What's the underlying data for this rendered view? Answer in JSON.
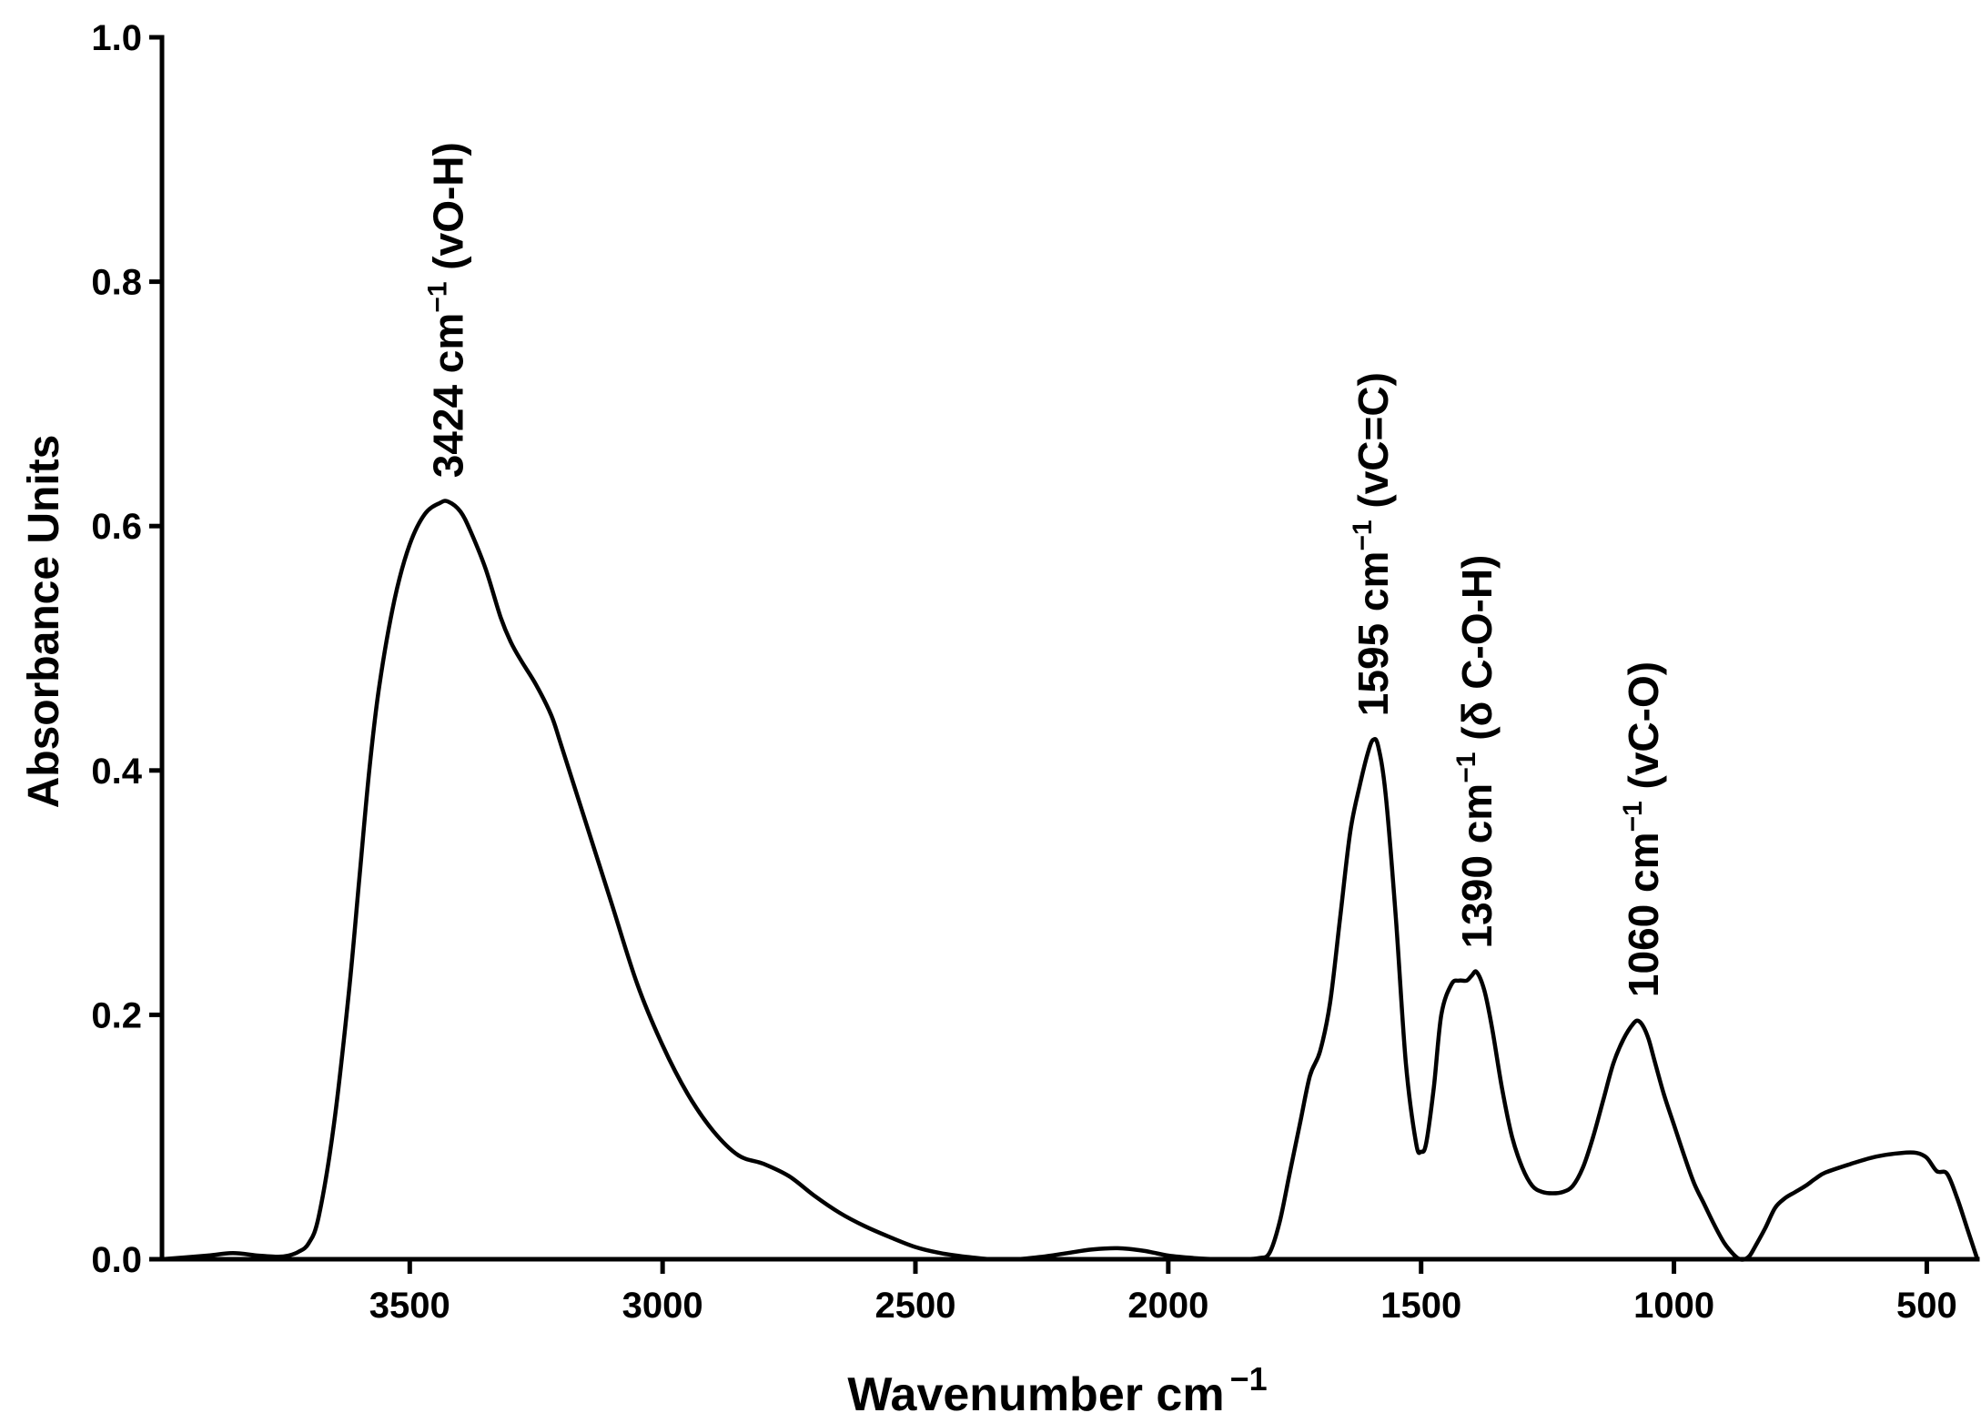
{
  "chart_data": {
    "type": "line",
    "title": "",
    "xlabel": "Wavenumber cm",
    "xlabel_sup": "−1",
    "ylabel": "Absorbance Units",
    "xlim": [
      3990,
      400
    ],
    "ylim": [
      0,
      1.0
    ],
    "x_reversed": true,
    "grid": false,
    "x_ticks": [
      3500,
      3000,
      2500,
      2000,
      1500,
      1000,
      500
    ],
    "x_tick_labels": [
      "3500",
      "3000",
      "2500",
      "2000",
      "1500",
      "1000",
      "500"
    ],
    "y_ticks": [
      0,
      0.2,
      0.4,
      0.6,
      0.8,
      1.0
    ],
    "y_tick_labels": [
      "0.0",
      "0.2",
      "0.4",
      "0.6",
      "0.8",
      "1.0"
    ],
    "annotations": [
      {
        "x": 3424,
        "y": 0.62,
        "pre": "3424 cm",
        "sup": "−1",
        "post": " (vO-H)"
      },
      {
        "x": 1595,
        "y": 0.425,
        "pre": "1595 cm",
        "sup": "−1",
        "post": " (vC=C)"
      },
      {
        "x": 1390,
        "y": 0.235,
        "pre": "1390 cm",
        "sup": "−1",
        "post": " (δ C-O-H)"
      },
      {
        "x": 1060,
        "y": 0.195,
        "pre": "1060 cm",
        "sup": "−1",
        "post": " (vC-O)"
      }
    ],
    "series": [
      {
        "color": "#000000",
        "x": [
          3990,
          3900,
          3850,
          3800,
          3760,
          3740,
          3720,
          3700,
          3680,
          3650,
          3620,
          3600,
          3580,
          3560,
          3530,
          3500,
          3470,
          3440,
          3424,
          3400,
          3380,
          3350,
          3320,
          3300,
          3280,
          3250,
          3220,
          3200,
          3150,
          3100,
          3050,
          3000,
          2950,
          2900,
          2850,
          2800,
          2750,
          2700,
          2650,
          2600,
          2550,
          2500,
          2450,
          2400,
          2350,
          2300,
          2250,
          2200,
          2150,
          2100,
          2050,
          2000,
          1950,
          1900,
          1850,
          1820,
          1800,
          1780,
          1760,
          1740,
          1720,
          1700,
          1680,
          1660,
          1640,
          1620,
          1605,
          1595,
          1585,
          1570,
          1550,
          1530,
          1510,
          1500,
          1490,
          1475,
          1460,
          1440,
          1425,
          1410,
          1400,
          1390,
          1375,
          1360,
          1340,
          1320,
          1300,
          1280,
          1260,
          1240,
          1220,
          1200,
          1180,
          1160,
          1140,
          1120,
          1100,
          1080,
          1070,
          1060,
          1050,
          1040,
          1020,
          1000,
          980,
          960,
          940,
          920,
          900,
          880,
          870,
          860,
          850,
          840,
          820,
          800,
          780,
          760,
          740,
          720,
          700,
          650,
          600,
          550,
          520,
          500,
          480,
          460,
          440,
          420,
          400
        ],
        "y": [
          0.0,
          0.003,
          0.005,
          0.003,
          0.002,
          0.003,
          0.006,
          0.013,
          0.035,
          0.11,
          0.22,
          0.31,
          0.4,
          0.47,
          0.54,
          0.585,
          0.61,
          0.619,
          0.62,
          0.612,
          0.596,
          0.565,
          0.525,
          0.505,
          0.49,
          0.47,
          0.445,
          0.42,
          0.355,
          0.29,
          0.225,
          0.175,
          0.135,
          0.105,
          0.085,
          0.078,
          0.068,
          0.052,
          0.038,
          0.027,
          0.018,
          0.01,
          0.005,
          0.002,
          0.0,
          0.0,
          0.002,
          0.005,
          0.008,
          0.009,
          0.007,
          0.003,
          0.001,
          0.0,
          0.0,
          0.001,
          0.005,
          0.03,
          0.07,
          0.11,
          0.15,
          0.17,
          0.21,
          0.28,
          0.35,
          0.39,
          0.415,
          0.425,
          0.42,
          0.38,
          0.28,
          0.16,
          0.095,
          0.088,
          0.095,
          0.14,
          0.2,
          0.225,
          0.228,
          0.228,
          0.232,
          0.235,
          0.22,
          0.19,
          0.14,
          0.1,
          0.075,
          0.06,
          0.055,
          0.054,
          0.055,
          0.06,
          0.075,
          0.1,
          0.13,
          0.16,
          0.18,
          0.193,
          0.195,
          0.19,
          0.18,
          0.165,
          0.135,
          0.11,
          0.085,
          0.062,
          0.045,
          0.028,
          0.013,
          0.003,
          0.0,
          0.0,
          0.003,
          0.01,
          0.025,
          0.042,
          0.05,
          0.055,
          0.06,
          0.066,
          0.071,
          0.078,
          0.084,
          0.087,
          0.087,
          0.083,
          0.072,
          0.07,
          0.05,
          0.025,
          0.0
        ]
      }
    ]
  }
}
